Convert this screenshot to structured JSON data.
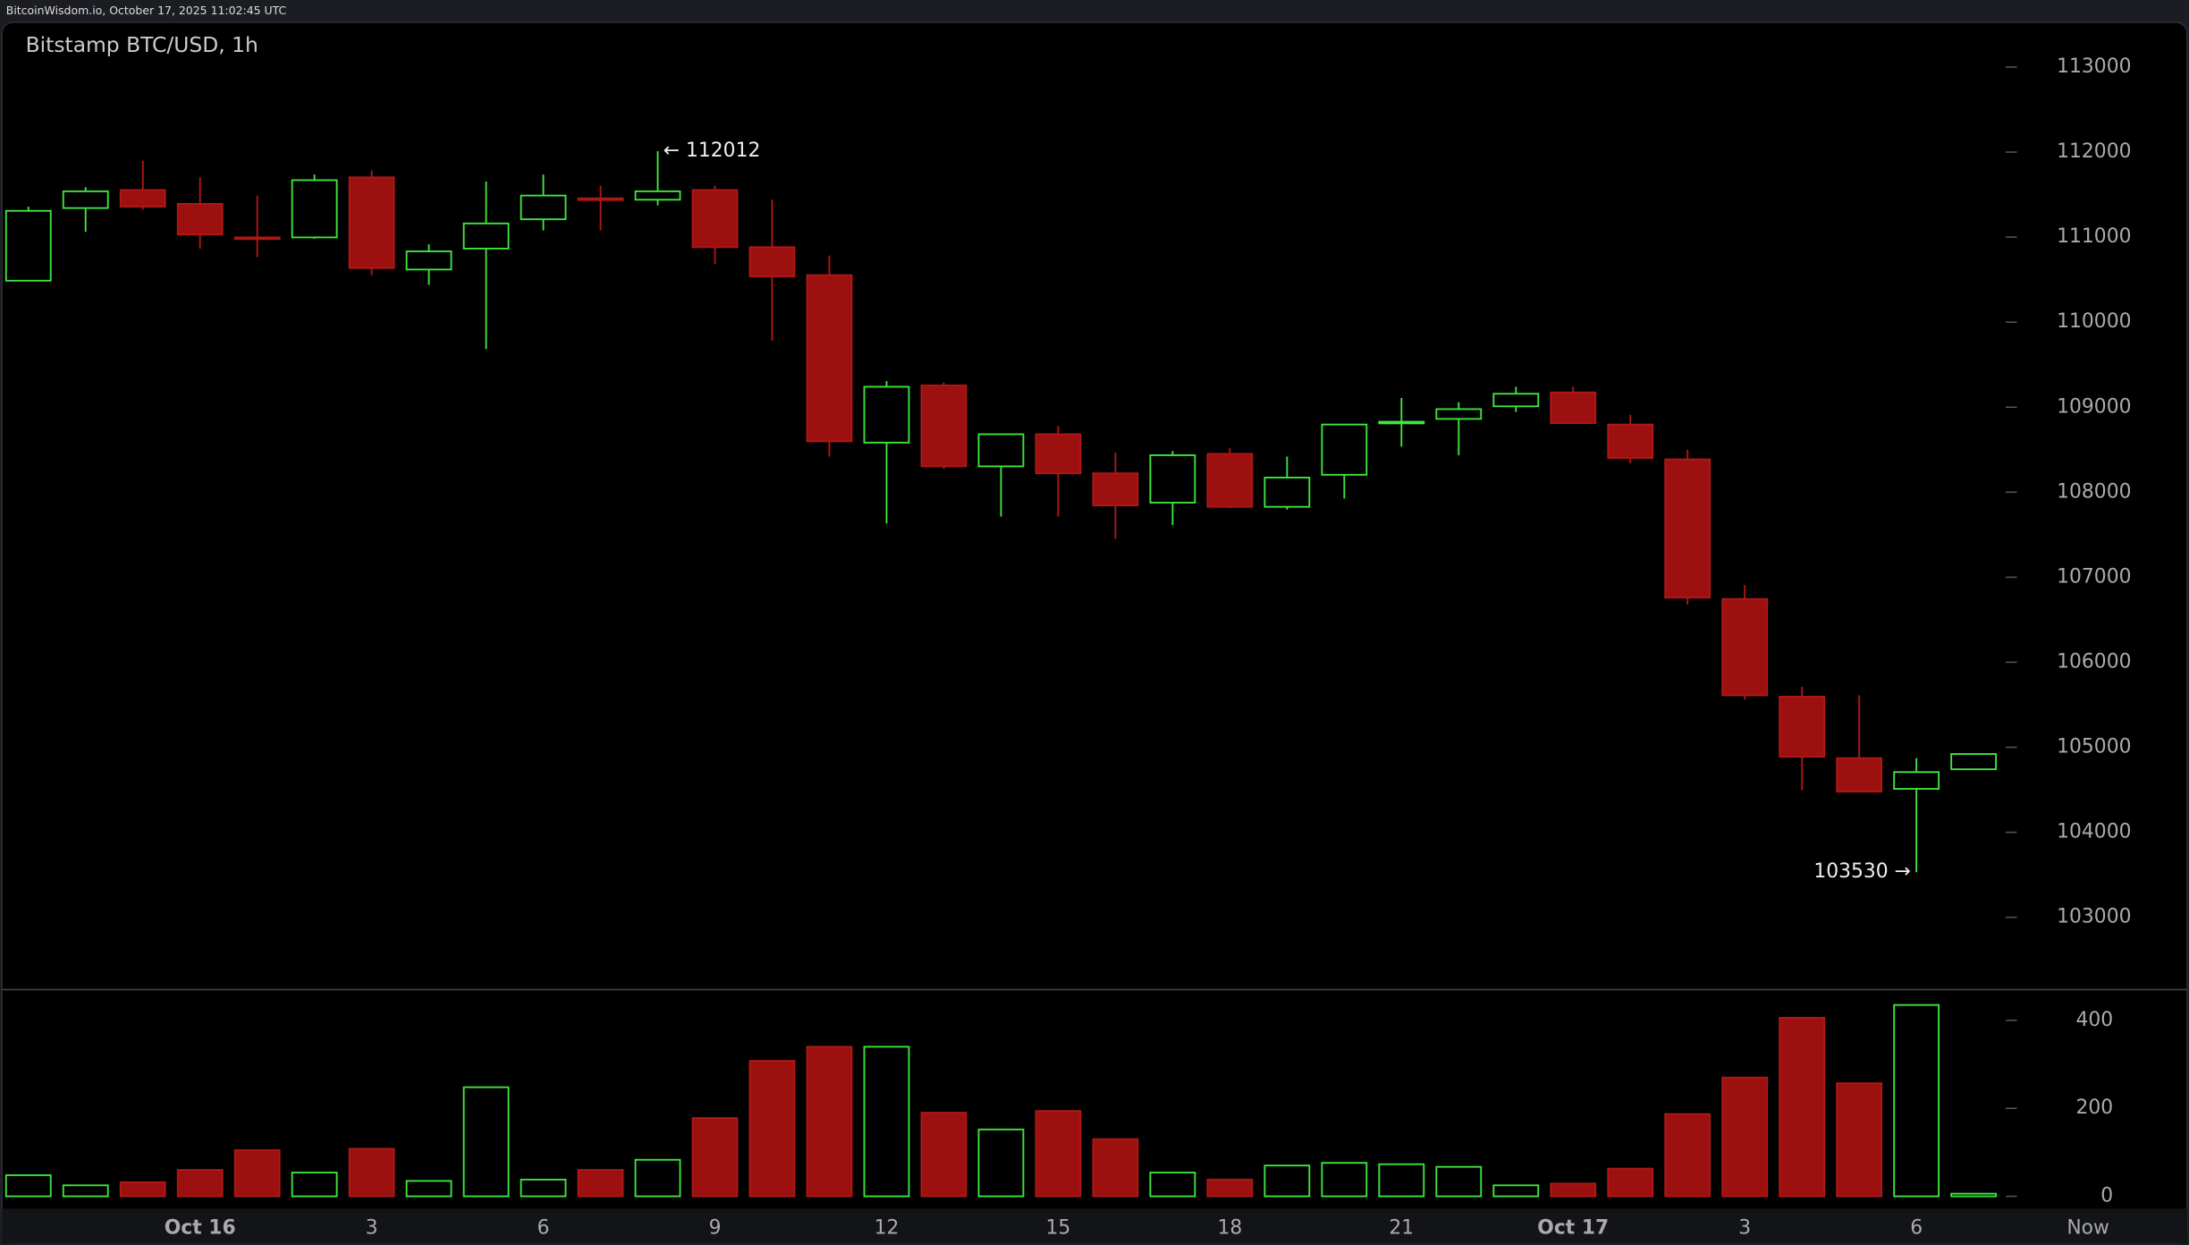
{
  "header": {
    "text": "BitcoinWisdom.io, October 17, 2025 11:02:45 UTC"
  },
  "chart_data": {
    "type": "candlestick",
    "title": "Bitstamp BTC/USD, 1h",
    "up_color": "#3ee63e",
    "down_color": "#9c1010",
    "open": [
      110488,
      111342,
      111555,
      111391,
      110997,
      110997,
      111703,
      110619,
      110865,
      111210,
      111456,
      111440,
      111555,
      110882,
      110553,
      108583,
      109256,
      108304,
      108682,
      108222,
      107877,
      108451,
      107828,
      108205,
      108813,
      108862,
      109010,
      109174,
      108796,
      108386,
      106744,
      105595,
      104872,
      104511,
      104741
    ],
    "high": [
      111358,
      111588,
      111900,
      111703,
      111489,
      111736,
      111785,
      110915,
      111654,
      111736,
      111604,
      112012,
      111604,
      111440,
      110783,
      109306,
      109289,
      108682,
      108780,
      108468,
      108485,
      108517,
      108419,
      108796,
      109108,
      109059,
      109240,
      109240,
      108911,
      108501,
      106908,
      105710,
      105611,
      104872,
      104921
    ],
    "low": [
      110488,
      111062,
      111325,
      110865,
      110767,
      110980,
      110553,
      110438,
      109683,
      111079,
      111079,
      111374,
      110685,
      109782,
      108419,
      107631,
      108271,
      107713,
      107713,
      107450,
      107614,
      107811,
      107795,
      107926,
      108534,
      108435,
      108944,
      108813,
      108337,
      106678,
      105562,
      104494,
      104478,
      103530,
      104741
    ],
    "close": [
      111309,
      111539,
      111358,
      111030,
      110980,
      111670,
      110636,
      110833,
      111161,
      111489,
      111440,
      111539,
      110882,
      110537,
      108599,
      109240,
      108304,
      108682,
      108222,
      107844,
      108435,
      107828,
      108172,
      108796,
      108829,
      108977,
      109158,
      108813,
      108402,
      106760,
      105611,
      104888,
      104478,
      104708,
      104921
    ],
    "volume": [
      48,
      25,
      32,
      60,
      105,
      54,
      108,
      35,
      248,
      38,
      60,
      83,
      178,
      308,
      340,
      340,
      190,
      152,
      194,
      130,
      54,
      38,
      70,
      76,
      73,
      67,
      25,
      29,
      63,
      187,
      270,
      406,
      257,
      435,
      6
    ],
    "ylim": [
      102150,
      113510
    ],
    "yticks": [
      103000,
      104000,
      105000,
      106000,
      107000,
      108000,
      109000,
      110000,
      111000,
      112000,
      113000
    ],
    "volume_ylim": [
      -25,
      470
    ],
    "volume_ticks": [
      0,
      200,
      400
    ],
    "xticks": [
      {
        "value": 3,
        "label": "Oct 16"
      },
      {
        "value": 6,
        "label": "3"
      },
      {
        "value": 9,
        "label": "6"
      },
      {
        "value": 12,
        "label": "9"
      },
      {
        "value": 15,
        "label": "12"
      },
      {
        "value": 18,
        "label": "15"
      },
      {
        "value": 21,
        "label": "18"
      },
      {
        "value": 24,
        "label": "21"
      },
      {
        "value": 27,
        "label": "Oct 17"
      },
      {
        "value": 30,
        "label": "3"
      },
      {
        "value": 33,
        "label": "6"
      },
      {
        "value": 36,
        "label": "Now"
      }
    ],
    "annotations": [
      {
        "label": "← 112012",
        "value": 112012,
        "kind": "high"
      },
      {
        "label": "103530 →",
        "value": 103530,
        "kind": "low"
      }
    ]
  }
}
